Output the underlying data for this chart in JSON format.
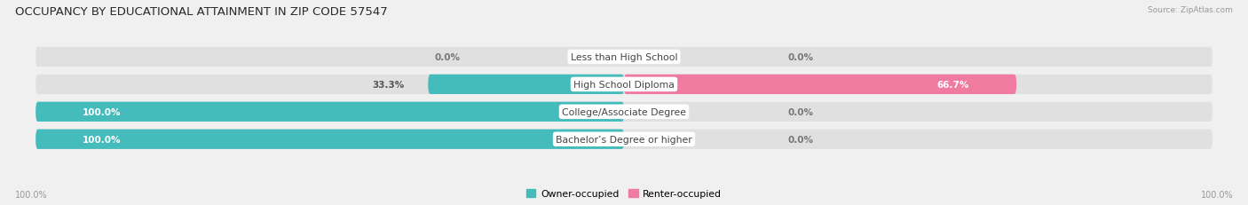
{
  "title": "OCCUPANCY BY EDUCATIONAL ATTAINMENT IN ZIP CODE 57547",
  "source": "Source: ZipAtlas.com",
  "categories": [
    "Less than High School",
    "High School Diploma",
    "College/Associate Degree",
    "Bachelor’s Degree or higher"
  ],
  "owner_values": [
    0.0,
    33.3,
    100.0,
    100.0
  ],
  "renter_values": [
    0.0,
    66.7,
    0.0,
    0.0
  ],
  "owner_color": "#45bcbc",
  "renter_color": "#f07aa0",
  "bg_color": "#f0f0f0",
  "bar_bg_color": "#e0e0e0",
  "chart_bg": "#ffffff",
  "title_fontsize": 9.5,
  "label_fontsize": 7.8,
  "val_fontsize": 7.5,
  "bar_height": 0.72,
  "figsize": [
    14.06,
    2.32
  ],
  "dpi": 100,
  "axis_label_left": "100.0%",
  "axis_label_right": "100.0%"
}
